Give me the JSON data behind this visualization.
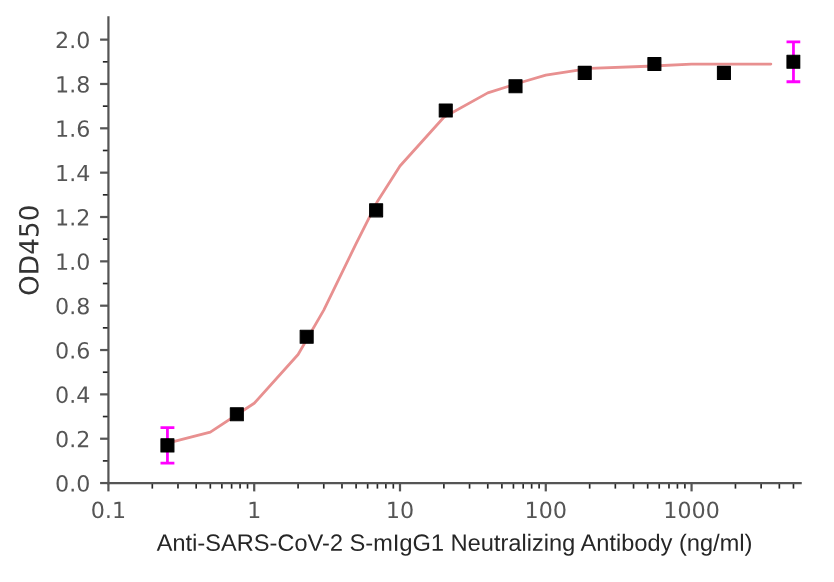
{
  "chart_data": {
    "type": "scatter",
    "xlabel": "Anti-SARS-CoV-2 S-mIgG1 Neutralizing Antibody (ng/ml)",
    "ylabel": "OD450",
    "log": "x",
    "grid": false,
    "legend": false,
    "xlim": [
      0.1,
      5600
    ],
    "xticks": [
      0.1,
      1,
      10,
      100,
      1000
    ],
    "ylim": [
      0,
      2.1
    ],
    "yticks": [
      {
        "value": 0,
        "label": "0.0"
      },
      0.2,
      0.4,
      0.6,
      0.8,
      {
        "value": 1,
        "label": "1.0"
      },
      1.2,
      1.4,
      1.6,
      1.8,
      {
        "value": 2,
        "label": "2.0"
      }
    ],
    "series": [
      {
        "marker": "square",
        "color": "#000000",
        "x": [
          0.254,
          0.76,
          2.29,
          6.86,
          20.6,
          62,
          185,
          556,
          1667,
          5000
        ],
        "values": [
          0.17,
          0.31,
          0.66,
          1.23,
          1.68,
          1.79,
          1.85,
          1.89,
          1.85,
          1.9
        ],
        "errors": [
          0.08,
          null,
          null,
          null,
          null,
          null,
          null,
          null,
          null,
          0.09
        ]
      },
      {
        "type": "line",
        "marker": "none",
        "line_style": "solid",
        "color": "#e89090",
        "x": [
          0.254,
          0.5,
          1,
          2,
          3,
          5,
          7,
          10,
          20,
          40,
          70,
          100,
          200,
          500,
          1000,
          3500
        ],
        "values": [
          0.18,
          0.23,
          0.36,
          0.58,
          0.78,
          1.08,
          1.27,
          1.43,
          1.65,
          1.76,
          1.81,
          1.84,
          1.87,
          1.88,
          1.89,
          1.89
        ]
      }
    ]
  }
}
